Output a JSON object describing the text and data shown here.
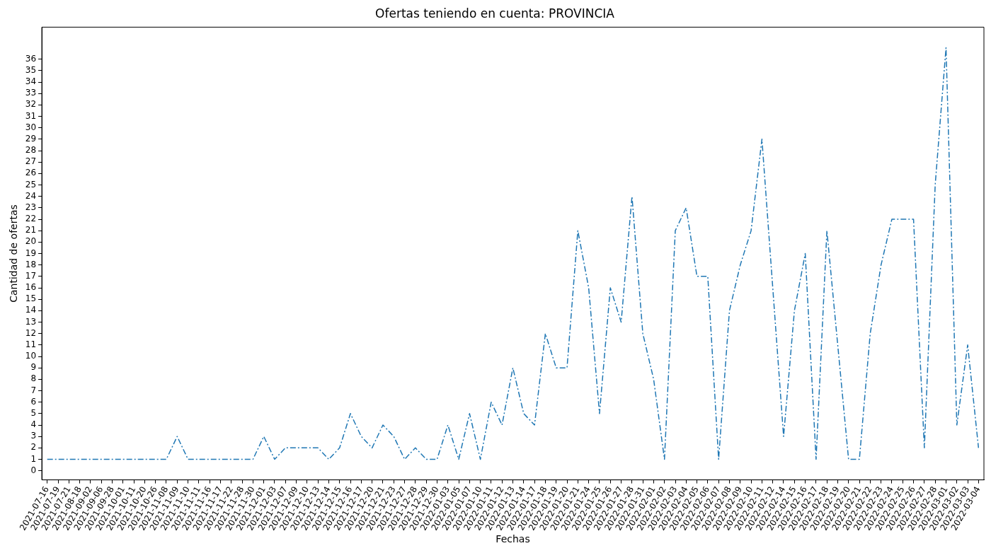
{
  "chart_data": {
    "type": "line",
    "title": "Ofertas teniendo en cuenta: PROVINCIA",
    "xlabel": "Fechas",
    "ylabel": "Cantidad de ofertas",
    "categories": [
      "2021-07-16",
      "2021-07-19",
      "2021-07-21",
      "2021-08-18",
      "2021-09-02",
      "2021-09-06",
      "2021-09-28",
      "2021-10-01",
      "2021-10-11",
      "2021-10-20",
      "2021-10-26",
      "2021-11-08",
      "2021-11-09",
      "2021-11-10",
      "2021-11-11",
      "2021-11-16",
      "2021-11-17",
      "2021-11-22",
      "2021-11-28",
      "2021-11-30",
      "2021-12-01",
      "2021-12-03",
      "2021-12-07",
      "2021-12-09",
      "2021-12-10",
      "2021-12-13",
      "2021-12-14",
      "2021-12-15",
      "2021-12-16",
      "2021-12-17",
      "2021-12-20",
      "2021-12-21",
      "2021-12-23",
      "2021-12-27",
      "2021-12-28",
      "2021-12-29",
      "2021-12-30",
      "2022-01-03",
      "2022-01-05",
      "2022-01-07",
      "2022-01-10",
      "2022-01-11",
      "2022-01-12",
      "2022-01-13",
      "2022-01-14",
      "2022-01-17",
      "2022-01-18",
      "2022-01-19",
      "2022-01-20",
      "2022-01-21",
      "2022-01-24",
      "2022-01-25",
      "2022-01-26",
      "2022-01-27",
      "2022-01-28",
      "2022-01-31",
      "2022-02-01",
      "2022-02-02",
      "2022-02-03",
      "2022-02-04",
      "2022-02-05",
      "2022-02-06",
      "2022-02-07",
      "2022-02-08",
      "2022-02-09",
      "2022-02-10",
      "2022-02-11",
      "2022-02-12",
      "2022-02-14",
      "2022-02-15",
      "2022-02-16",
      "2022-02-17",
      "2022-02-18",
      "2022-02-19",
      "2022-02-20",
      "2022-02-21",
      "2022-02-22",
      "2022-02-23",
      "2022-02-24",
      "2022-02-25",
      "2022-02-26",
      "2022-02-27",
      "2022-02-28",
      "2022-03-01",
      "2022-03-02",
      "2022-03-03",
      "2022-03-04"
    ],
    "series": [
      {
        "color": "#1f77b4",
        "values": [
          1,
          1,
          1,
          1,
          1,
          1,
          1,
          1,
          1,
          1,
          1,
          1,
          3,
          1,
          1,
          1,
          1,
          1,
          1,
          1,
          3,
          1,
          2,
          2,
          2,
          2,
          1,
          2,
          5,
          3,
          2,
          4,
          3,
          1,
          2,
          1,
          1,
          4,
          1,
          5,
          1,
          6,
          4,
          9,
          5,
          4,
          12,
          9,
          9,
          21,
          16,
          5,
          16,
          13,
          24,
          12,
          8,
          1,
          21,
          23,
          17,
          17,
          1,
          14,
          18,
          21,
          29,
          16,
          3,
          14,
          19,
          1,
          21,
          11,
          1,
          1,
          12,
          18,
          22,
          22,
          22,
          2,
          25,
          37,
          4,
          11,
          2
        ]
      }
    ],
    "ylim": [
      -0.8,
      38.8
    ],
    "yticks": [
      0,
      1,
      2,
      3,
      4,
      5,
      6,
      7,
      8,
      9,
      10,
      11,
      12,
      13,
      14,
      15,
      16,
      17,
      18,
      19,
      20,
      21,
      22,
      23,
      24,
      25,
      26,
      27,
      28,
      29,
      30,
      31,
      32,
      33,
      34,
      35,
      36
    ],
    "grid": false,
    "legend": false,
    "marker": "none",
    "line_style": "dashdot"
  }
}
